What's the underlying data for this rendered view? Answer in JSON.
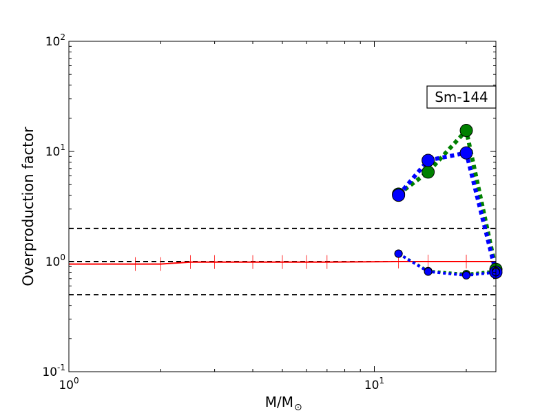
{
  "chart_data": {
    "type": "line",
    "xlabel_main": "M/M",
    "xlabel_sub": "⊙",
    "ylabel": "Overproduction factor",
    "xscale": "log",
    "yscale": "log",
    "xlim": [
      1,
      25
    ],
    "ylim": [
      0.1,
      100
    ],
    "x_ticks": [
      {
        "value": 1,
        "base": "10",
        "exp": "0"
      },
      {
        "value": 10,
        "base": "10",
        "exp": "1"
      }
    ],
    "y_ticks": [
      {
        "value": 0.1,
        "base": "10",
        "exp": "-1"
      },
      {
        "value": 1,
        "base": "10",
        "exp": "0"
      },
      {
        "value": 10,
        "base": "10",
        "exp": "1"
      },
      {
        "value": 100,
        "base": "10",
        "exp": "2"
      }
    ],
    "annotation": "Sm-144",
    "reference_lines": [
      0.5,
      1,
      2
    ],
    "series": [
      {
        "color": "#ff0000",
        "style": "solid-with-ticks",
        "x": [
          1.0,
          1.65,
          2.0,
          2.5,
          3.0,
          4.0,
          5.0,
          6.0,
          7.0,
          12.0,
          15.0,
          20.0,
          25.0
        ],
        "y": [
          0.95,
          0.95,
          0.95,
          0.99,
          0.99,
          0.99,
          0.99,
          0.99,
          0.99,
          1.0,
          1.0,
          1.0,
          1.0
        ]
      },
      {
        "color": "#008000",
        "style": "thick-dotted-large-markers",
        "x": [
          12,
          15,
          20,
          25
        ],
        "y": [
          4.1,
          6.5,
          15.5,
          0.85
        ]
      },
      {
        "color": "#0000ff",
        "style": "thick-dotted-large-markers",
        "x": [
          12,
          15,
          20,
          25
        ],
        "y": [
          4.0,
          8.3,
          9.7,
          0.8
        ]
      },
      {
        "color": "#008000",
        "style": "thin-dotted-small-markers",
        "x": [
          12,
          15,
          20,
          25
        ],
        "y": [
          1.18,
          0.82,
          0.77,
          0.82
        ]
      },
      {
        "color": "#0000ff",
        "style": "thin-dotted-small-markers",
        "x": [
          12,
          15,
          20,
          25
        ],
        "y": [
          1.18,
          0.81,
          0.75,
          0.8
        ]
      }
    ]
  }
}
